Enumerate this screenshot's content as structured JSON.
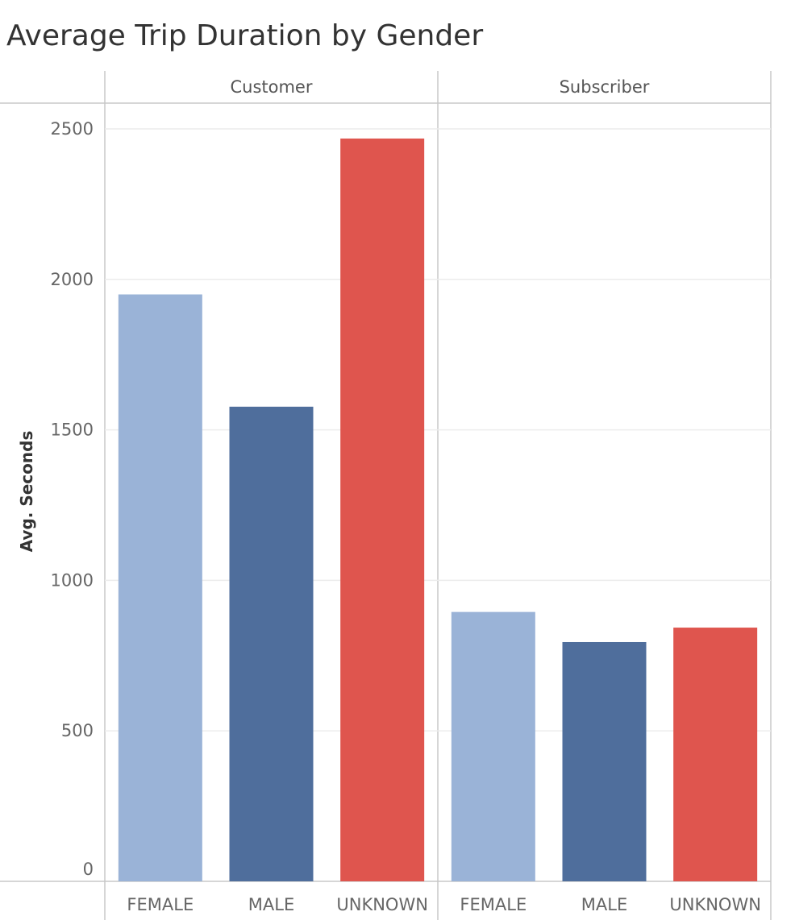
{
  "chart_data": {
    "type": "bar",
    "title": "Average Trip Duration by Gender",
    "ylabel": "Avg. Seconds",
    "xlabel": "",
    "ylim": [
      0,
      2500
    ],
    "yticks": [
      0,
      500,
      1000,
      1500,
      2000,
      2500
    ],
    "categories": [
      "FEMALE",
      "MALE",
      "UNKNOWN"
    ],
    "panels": [
      {
        "name": "Customer",
        "values": [
          1950,
          1577,
          2468
        ]
      },
      {
        "name": "Subscriber",
        "values": [
          895,
          795,
          843
        ]
      }
    ],
    "colors": {
      "FEMALE": "#9ab3d7",
      "MALE": "#4f6e9c",
      "UNKNOWN": "#df554e"
    },
    "grid": true,
    "legend": "none"
  }
}
